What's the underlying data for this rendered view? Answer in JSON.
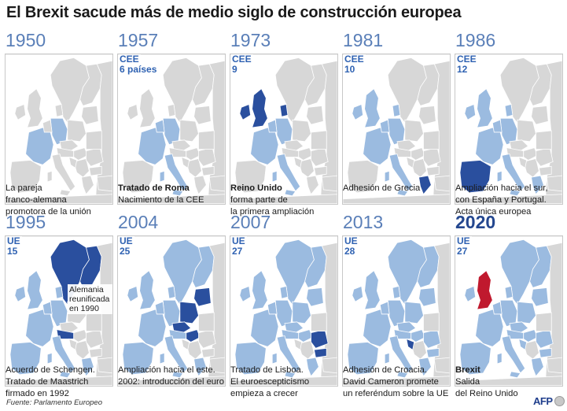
{
  "title": "El Brexit sacude más de medio siglo de construcción europea",
  "colors": {
    "land_non_member": "#d7d7d7",
    "member": "#9bbbe0",
    "new_member": "#2a4f9e",
    "leaving": "#c0192e",
    "sea": "#ffffff"
  },
  "panels": [
    {
      "year": "1950",
      "tag1": "",
      "tag2": "",
      "caption_bold": "",
      "caption": [
        "La pareja",
        "franco-alemana",
        "promotora de la unión"
      ],
      "highlight": "none"
    },
    {
      "year": "1957",
      "tag1": "CEE",
      "tag2": "6 países",
      "caption_bold": "Tratado de Roma",
      "caption": [
        "Nacimiento de la CEE"
      ],
      "highlight": "none"
    },
    {
      "year": "1973",
      "tag1": "CEE",
      "tag2": "9",
      "caption_bold": "Reino Unido",
      "caption": [
        "forma parte de",
        "la primera ampliación"
      ],
      "highlight": "uk"
    },
    {
      "year": "1981",
      "tag1": "CEE",
      "tag2": "10",
      "caption_bold": "",
      "caption": [
        "Adhesión de Grecia"
      ],
      "highlight": "greece"
    },
    {
      "year": "1986",
      "tag1": "CEE",
      "tag2": "12",
      "caption_bold": "",
      "caption": [
        "Ampliación hacia el sur,",
        "con España y Portugal.",
        "Acta única europea"
      ],
      "highlight": "iberia"
    },
    {
      "year": "1995",
      "tag1": "UE",
      "tag2": "15",
      "caption_bold": "",
      "caption": [
        "Acuerdo de Schengen.",
        "Tratado de Maastrich",
        "firmado en 1992"
      ],
      "highlight": "nordic",
      "annotation": "Alemania reunificada en 1990"
    },
    {
      "year": "2004",
      "tag1": "UE",
      "tag2": "25",
      "caption_bold": "",
      "caption": [
        "Ampliación hacia el este.",
        "2002: introducción del euro"
      ],
      "highlight": "east"
    },
    {
      "year": "2007",
      "tag1": "UE",
      "tag2": "27",
      "caption_bold": "",
      "caption": [
        "Tratado de Lisboa.",
        "El euroescepticismo",
        "empieza a crecer"
      ],
      "highlight": "romania"
    },
    {
      "year": "2013",
      "tag1": "UE",
      "tag2": "28",
      "caption_bold": "",
      "caption": [
        "Adhesión de Croacia.",
        "David Cameron promete",
        "un referéndum sobre la UE"
      ],
      "highlight": "croatia"
    },
    {
      "year": "2020",
      "tag1": "UE",
      "tag2": "27",
      "caption_bold": "Brexit",
      "caption": [
        "Salida",
        "del Reino Unido"
      ],
      "highlight": "brexit"
    }
  ],
  "source": "Fuente: Parlamento Europeo",
  "logo": "AFP"
}
